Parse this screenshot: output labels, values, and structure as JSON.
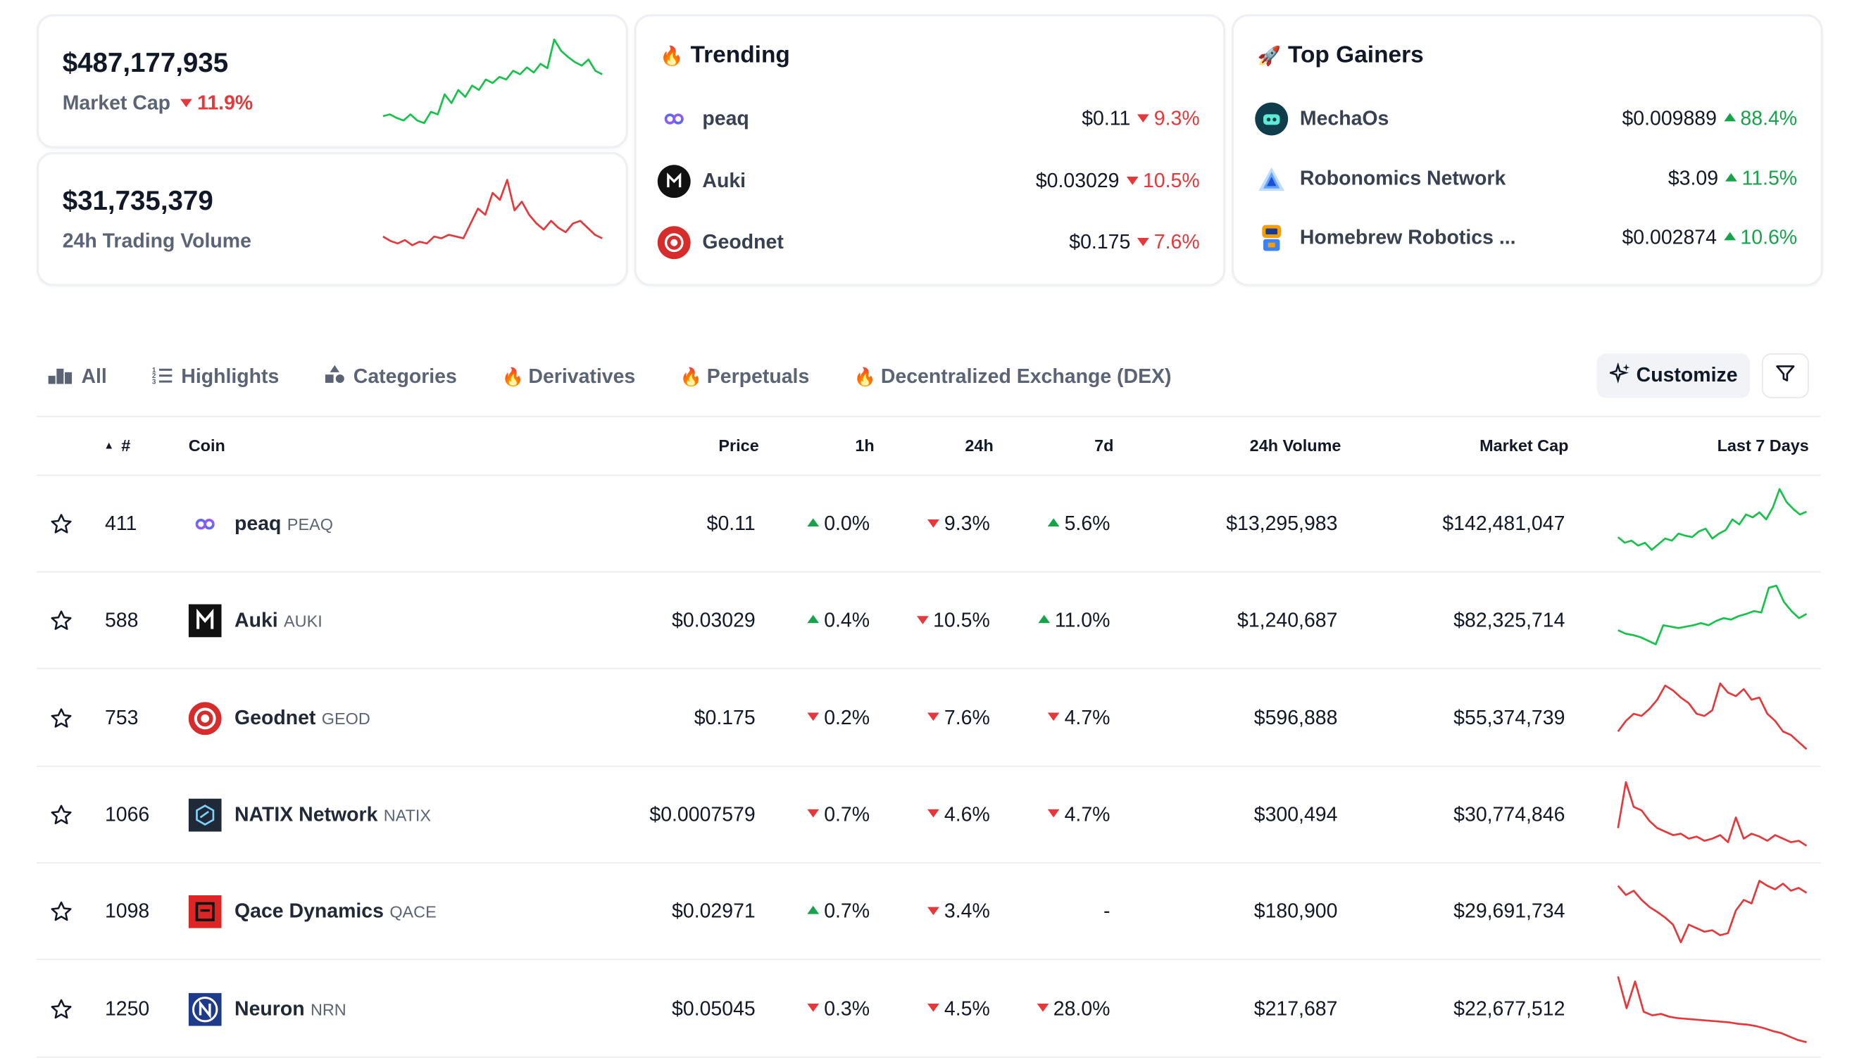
{
  "stats": {
    "market_cap": {
      "value": "$487,177,935",
      "label": "Market Cap",
      "change": "11.9%",
      "spark_color": "#16c24a",
      "spark": [
        0.1,
        0.12,
        0.08,
        0.05,
        0.12,
        0.05,
        0.02,
        0.15,
        0.12,
        0.35,
        0.25,
        0.4,
        0.32,
        0.45,
        0.4,
        0.52,
        0.48,
        0.55,
        0.52,
        0.62,
        0.58,
        0.66,
        0.6,
        0.7,
        0.65,
        0.98,
        0.85,
        0.78,
        0.72,
        0.68,
        0.75,
        0.62,
        0.58
      ]
    },
    "volume": {
      "value": "$31,735,379",
      "label": "24h Trading Volume",
      "spark_color": "#e5383b",
      "spark": [
        0.3,
        0.25,
        0.22,
        0.26,
        0.2,
        0.24,
        0.22,
        0.3,
        0.28,
        0.32,
        0.3,
        0.28,
        0.45,
        0.62,
        0.55,
        0.8,
        0.72,
        0.95,
        0.6,
        0.7,
        0.55,
        0.45,
        0.38,
        0.48,
        0.4,
        0.35,
        0.45,
        0.48,
        0.4,
        0.32,
        0.28
      ]
    }
  },
  "trending": {
    "title": "Trending",
    "items": [
      {
        "name": "peaq",
        "price": "$0.11",
        "change": "9.3%"
      },
      {
        "name": "Auki",
        "price": "$0.03029",
        "change": "10.5%"
      },
      {
        "name": "Geodnet",
        "price": "$0.175",
        "change": "7.6%"
      }
    ]
  },
  "gainers": {
    "title": "Top Gainers",
    "items": [
      {
        "name": "MechaOs",
        "price": "$0.009889",
        "change": "88.4%"
      },
      {
        "name": "Robonomics Network",
        "price": "$3.09",
        "change": "11.5%"
      },
      {
        "name": "Homebrew Robotics ...",
        "price": "$0.002874",
        "change": "10.6%"
      }
    ]
  },
  "tabs": [
    {
      "label": "All",
      "icon": "podium-icon"
    },
    {
      "label": "Highlights",
      "icon": "list-icon"
    },
    {
      "label": "Categories",
      "icon": "shapes-icon"
    },
    {
      "label": "Derivatives",
      "icon": "fire-icon"
    },
    {
      "label": "Perpetuals",
      "icon": "fire-icon"
    },
    {
      "label": "Decentralized Exchange (DEX)",
      "icon": "fire-icon"
    }
  ],
  "toolbar": {
    "customize_label": "Customize"
  },
  "table": {
    "headers": {
      "rank": "#",
      "coin": "Coin",
      "price": "Price",
      "h1": "1h",
      "h24": "24h",
      "d7": "7d",
      "volume": "24h Volume",
      "mcap": "Market Cap",
      "last7": "Last 7 Days"
    },
    "rows": [
      {
        "rank": "411",
        "name": "peaq",
        "symbol": "PEAQ",
        "price": "$0.11",
        "h1": "0.0%",
        "h1_dir": "up",
        "h24": "9.3%",
        "h24_dir": "down",
        "d7": "5.6%",
        "d7_dir": "up",
        "volume": "$13,295,983",
        "mcap": "$142,481,047",
        "spark_color": "#16c24a",
        "spark": [
          0.3,
          0.22,
          0.25,
          0.18,
          0.22,
          0.12,
          0.2,
          0.28,
          0.25,
          0.35,
          0.32,
          0.3,
          0.38,
          0.42,
          0.28,
          0.35,
          0.4,
          0.55,
          0.48,
          0.62,
          0.58,
          0.65,
          0.55,
          0.72,
          0.98,
          0.8,
          0.7,
          0.62,
          0.66
        ]
      },
      {
        "rank": "588",
        "name": "Auki",
        "symbol": "AUKI",
        "price": "$0.03029",
        "h1": "0.4%",
        "h1_dir": "up",
        "h24": "10.5%",
        "h24_dir": "down",
        "d7": "11.0%",
        "d7_dir": "up",
        "volume": "$1,240,687",
        "mcap": "$82,325,714",
        "spark_color": "#16c24a",
        "spark": [
          0.35,
          0.3,
          0.28,
          0.25,
          0.2,
          0.15,
          0.42,
          0.4,
          0.38,
          0.4,
          0.42,
          0.45,
          0.42,
          0.48,
          0.52,
          0.5,
          0.55,
          0.58,
          0.62,
          0.6,
          0.95,
          0.98,
          0.75,
          0.62,
          0.52,
          0.58
        ]
      },
      {
        "rank": "753",
        "name": "Geodnet",
        "symbol": "GEOD",
        "price": "$0.175",
        "h1": "0.2%",
        "h1_dir": "down",
        "h24": "7.6%",
        "h24_dir": "down",
        "d7": "4.7%",
        "d7_dir": "down",
        "volume": "$596,888",
        "mcap": "$55,374,739",
        "spark_color": "#e5383b",
        "spark": [
          0.3,
          0.45,
          0.55,
          0.52,
          0.62,
          0.75,
          0.95,
          0.88,
          0.78,
          0.7,
          0.55,
          0.52,
          0.6,
          0.98,
          0.85,
          0.8,
          0.9,
          0.75,
          0.78,
          0.55,
          0.45,
          0.3,
          0.25,
          0.15,
          0.05
        ]
      },
      {
        "rank": "1066",
        "name": "NATIX Network",
        "symbol": "NATIX",
        "price": "$0.0007579",
        "h1": "0.7%",
        "h1_dir": "down",
        "h24": "4.6%",
        "h24_dir": "down",
        "d7": "4.7%",
        "d7_dir": "down",
        "volume": "$300,494",
        "mcap": "$30,774,846",
        "spark_color": "#e5383b",
        "spark": [
          0.3,
          0.95,
          0.6,
          0.55,
          0.4,
          0.3,
          0.25,
          0.2,
          0.22,
          0.15,
          0.18,
          0.12,
          0.15,
          0.2,
          0.1,
          0.45,
          0.15,
          0.22,
          0.18,
          0.12,
          0.2,
          0.15,
          0.1,
          0.12,
          0.05
        ]
      },
      {
        "rank": "1098",
        "name": "Qace Dynamics",
        "symbol": "QACE",
        "price": "$0.02971",
        "h1": "0.7%",
        "h1_dir": "up",
        "h24": "3.4%",
        "h24_dir": "down",
        "d7": "-",
        "d7_dir": "none",
        "volume": "$180,900",
        "mcap": "$29,691,734",
        "spark_color": "#e5383b",
        "spark": [
          0.85,
          0.72,
          0.78,
          0.65,
          0.55,
          0.48,
          0.4,
          0.3,
          0.05,
          0.3,
          0.25,
          0.2,
          0.22,
          0.15,
          0.18,
          0.5,
          0.65,
          0.6,
          0.92,
          0.85,
          0.8,
          0.88,
          0.78,
          0.82,
          0.75
        ]
      },
      {
        "rank": "1250",
        "name": "Neuron",
        "symbol": "NRN",
        "price": "$0.05045",
        "h1": "0.3%",
        "h1_dir": "down",
        "h24": "4.5%",
        "h24_dir": "down",
        "d7": "28.0%",
        "d7_dir": "down",
        "volume": "$217,687",
        "mcap": "$22,677,512",
        "spark_color": "#e5383b",
        "spark": [
          0.95,
          0.5,
          0.88,
          0.45,
          0.4,
          0.42,
          0.38,
          0.36,
          0.35,
          0.34,
          0.33,
          0.32,
          0.31,
          0.3,
          0.28,
          0.27,
          0.25,
          0.22,
          0.18,
          0.15,
          0.1,
          0.05,
          0.02
        ]
      }
    ]
  }
}
